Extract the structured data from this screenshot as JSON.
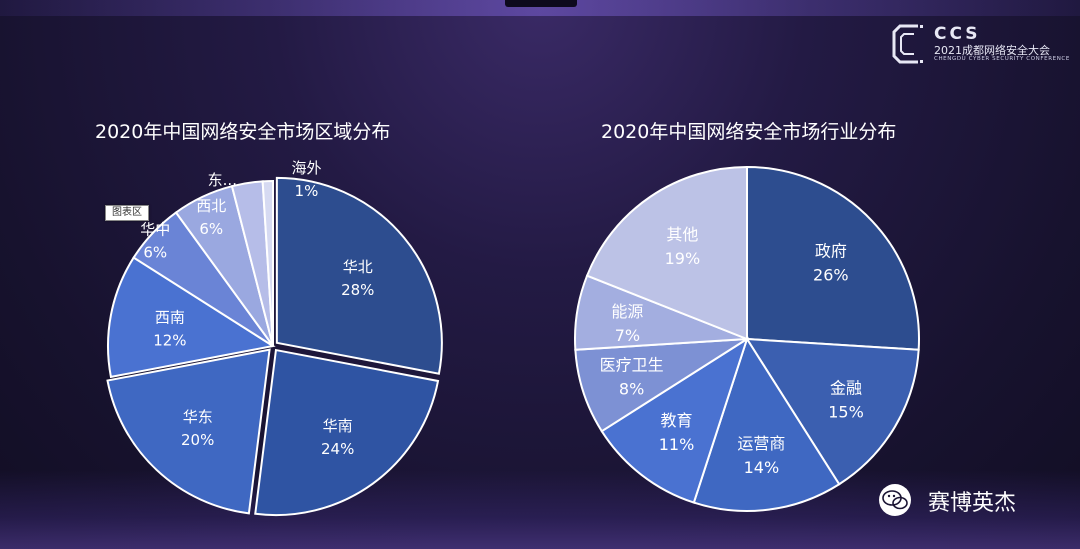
{
  "logo": {
    "text": "CCS",
    "subtitle": "2021成都网络安全大会",
    "subtitle_en": "CHENGDU CYBER SECURITY CONFERENCE"
  },
  "tooltip": "图表区",
  "watermark": "赛博英杰",
  "colors": {
    "background": "#1a1433",
    "slice_dark": "#2d4d8f",
    "slice_mid": "#3f68c2",
    "slice_bright": "#4a72d1",
    "slice_light": "#7d91d4",
    "slice_pale": "#b9bfe6"
  },
  "chart_data": [
    {
      "type": "pie",
      "title": "2020年中国网络安全市场区域分布",
      "categories": [
        "华北",
        "华南",
        "华东",
        "西南",
        "华中",
        "西北",
        "东...",
        "海外"
      ],
      "values": [
        28,
        24,
        20,
        12,
        6,
        6,
        3,
        1
      ],
      "labels": [
        "28%",
        "24%",
        "20%",
        "12%",
        "6%",
        "6%",
        "",
        "1%"
      ],
      "slice_colors": [
        "#2d4d8f",
        "#2f54a3",
        "#3f68c2",
        "#4a72d1",
        "#6a84d6",
        "#9aa8e0",
        "#b6bde8",
        "#d6daf2"
      ],
      "exploded": [
        "华北",
        "华南",
        "华东"
      ]
    },
    {
      "type": "pie",
      "title": "2020年中国网络安全市场行业分布",
      "categories": [
        "政府",
        "金融",
        "运营商",
        "教育",
        "医疗卫生",
        "能源",
        "其他"
      ],
      "values": [
        26,
        15,
        14,
        11,
        8,
        7,
        19
      ],
      "labels": [
        "26%",
        "15%",
        "14%",
        "11%",
        "8%",
        "7%",
        "19%"
      ],
      "slice_colors": [
        "#2d4d8f",
        "#3b5fb0",
        "#3f68c2",
        "#4a72d1",
        "#7d91d4",
        "#a3aee0",
        "#bcc2e6"
      ]
    }
  ]
}
